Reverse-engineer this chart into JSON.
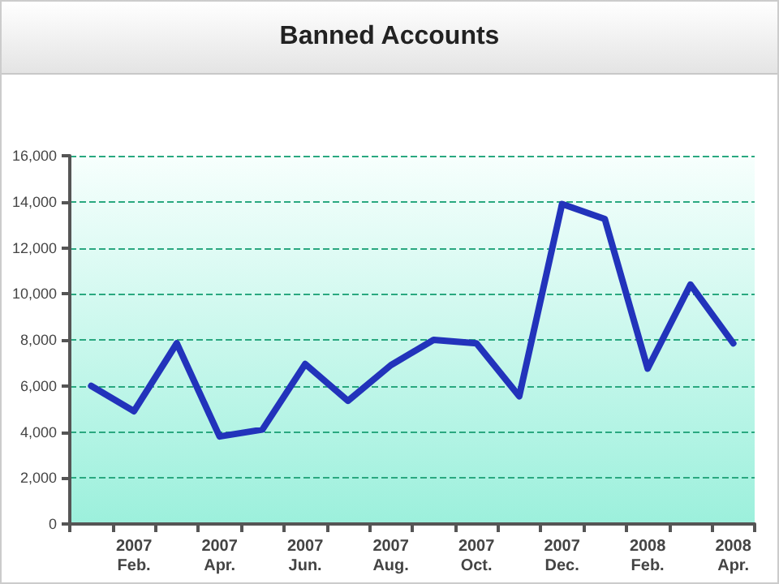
{
  "chart_data": {
    "type": "line",
    "title": "Banned Accounts",
    "categories": [
      null,
      "2007\nFeb.",
      null,
      "2007\nApr.",
      null,
      "2007\nJun.",
      null,
      "2007\nAug.",
      null,
      "2007\nOct.",
      null,
      "2007\nDec.",
      null,
      "2008\nFeb.",
      null,
      "2008\nApr."
    ],
    "series": [
      {
        "color": "#2233bb",
        "values": [
          6000,
          4900,
          7850,
          3800,
          4100,
          6950,
          5350,
          6900,
          8000,
          7850,
          5550,
          13900,
          13250,
          6750,
          10400,
          7850
        ]
      }
    ],
    "ylim": [
      0,
      16000
    ],
    "yticks": [
      {
        "value": 0,
        "label": "0"
      },
      {
        "value": 2000,
        "label": "2,000"
      },
      {
        "value": 4000,
        "label": "4,000"
      },
      {
        "value": 6000,
        "label": "6,000"
      },
      {
        "value": 8000,
        "label": "8,000"
      },
      {
        "value": 10000,
        "label": "10,000"
      },
      {
        "value": 12000,
        "label": "12,000"
      },
      {
        "value": 14000,
        "label": "14,000"
      },
      {
        "value": 16000,
        "label": "16,000"
      }
    ],
    "grid": "y",
    "marker": "none",
    "line_style": "solid"
  }
}
